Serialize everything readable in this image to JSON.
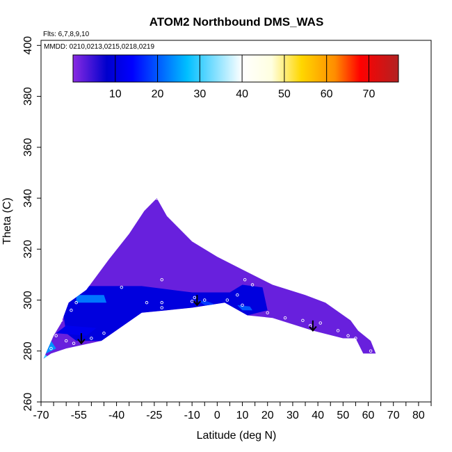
{
  "chart_data": {
    "type": "heatmap",
    "title": "ATOM2 Northbound DMS_WAS",
    "notes": {
      "flights": "Flts: 6,7,8,9,10",
      "dates": "MMDD: 0210,0213,0215,0218,0219"
    },
    "xlabel": "Latitude (deg N)",
    "ylabel": "Theta (C)",
    "xlim": [
      -70,
      85
    ],
    "ylim": [
      260,
      402
    ],
    "x_tick_labels": [
      "-70",
      "-55",
      "-40",
      "-25",
      "-10",
      "0",
      "10",
      "20",
      "30",
      "40",
      "50",
      "60",
      "70",
      "80"
    ],
    "x_tick_values": [
      -70,
      -55,
      -40,
      -25,
      -10,
      0,
      10,
      20,
      30,
      40,
      50,
      60,
      70,
      80
    ],
    "x_minor_ticks": [
      -65,
      -60,
      -50,
      -45,
      -35,
      -30,
      -20,
      -15,
      -5,
      5,
      15,
      25,
      35,
      45,
      55,
      65,
      75,
      85
    ],
    "y_tick_labels": [
      "260",
      "280",
      "300",
      "320",
      "340",
      "360",
      "380",
      "400"
    ],
    "y_tick_values": [
      260,
      280,
      300,
      320,
      340,
      360,
      380,
      400
    ],
    "colorbar": {
      "vmin": 0,
      "vmax": 77,
      "tick_labels": [
        "10",
        "20",
        "30",
        "40",
        "50",
        "60",
        "70"
      ],
      "tick_values": [
        10,
        20,
        30,
        40,
        50,
        60,
        70
      ],
      "stops": [
        {
          "v": 0,
          "color": "#8a2be2"
        },
        {
          "v": 8,
          "color": "#0000cd"
        },
        {
          "v": 14,
          "color": "#0000ff"
        },
        {
          "v": 27,
          "color": "#00bfff"
        },
        {
          "v": 40,
          "color": "#ffffff"
        },
        {
          "v": 47,
          "color": "#ffffe0"
        },
        {
          "v": 54,
          "color": "#ffd700"
        },
        {
          "v": 62,
          "color": "#ff8c00"
        },
        {
          "v": 68,
          "color": "#ff0000"
        },
        {
          "v": 77,
          "color": "#b22222"
        }
      ]
    },
    "field": {
      "envelope": [
        [
          -69,
          277
        ],
        [
          -65,
          286
        ],
        [
          -62,
          291
        ],
        [
          -59,
          299
        ],
        [
          -52,
          304
        ],
        [
          -43,
          316
        ],
        [
          -35,
          326
        ],
        [
          -29,
          335
        ],
        [
          -24,
          340
        ],
        [
          -20,
          333
        ],
        [
          -10,
          323
        ],
        [
          0,
          317
        ],
        [
          10,
          312
        ],
        [
          22,
          306
        ],
        [
          35,
          302
        ],
        [
          43,
          299
        ],
        [
          53,
          292
        ],
        [
          56,
          288
        ],
        [
          61,
          284
        ],
        [
          63,
          279
        ],
        [
          58,
          279
        ],
        [
          55,
          285
        ],
        [
          50,
          285
        ],
        [
          38,
          288
        ],
        [
          22,
          293
        ],
        [
          12,
          294
        ],
        [
          3,
          299
        ],
        [
          -10,
          297
        ],
        [
          -20,
          296
        ],
        [
          -30,
          295
        ],
        [
          -46,
          284
        ],
        [
          -60,
          281
        ],
        [
          -66,
          279
        ],
        [
          -69,
          277
        ]
      ],
      "background_value": 2,
      "patches": [
        {
          "points": [
            [
              -62,
              300
            ],
            [
              -55,
              305.5
            ],
            [
              -30,
              305.5
            ],
            [
              -10,
              303
            ],
            [
              5,
              303
            ],
            [
              10,
              306
            ],
            [
              18,
              305
            ],
            [
              20,
              296
            ],
            [
              12,
              294
            ],
            [
              3,
              299
            ],
            [
              -10,
              297
            ],
            [
              -20,
              296
            ],
            [
              -30,
              295
            ],
            [
              -46,
              284
            ],
            [
              -56,
              284
            ],
            [
              -60,
              287
            ]
          ],
          "value": 10
        },
        {
          "points": [
            [
              -56,
              302
            ],
            [
              -45,
              302
            ],
            [
              -44,
              299
            ],
            [
              -56,
              299
            ]
          ],
          "value": 22
        },
        {
          "points": [
            [
              -64,
              287
            ],
            [
              -52,
              286
            ],
            [
              -48,
              289
            ],
            [
              -60,
              290
            ]
          ],
          "value": 12
        },
        {
          "points": [
            [
              -68,
              279
            ],
            [
              -64,
              281
            ],
            [
              -66,
              284
            ],
            [
              -69,
              281
            ]
          ],
          "value": 24
        },
        {
          "points": [
            [
              -69,
              276.5
            ],
            [
              -67.5,
              278
            ],
            [
              -69,
              279
            ]
          ],
          "value": 30
        },
        {
          "points": [
            [
              -8,
              300
            ],
            [
              -4,
              299.5
            ],
            [
              0,
              298
            ],
            [
              -5,
              298
            ]
          ],
          "value": 18
        },
        {
          "points": [
            [
              8,
              298
            ],
            [
              13,
              297.5
            ],
            [
              14,
              296
            ],
            [
              10,
              296
            ]
          ],
          "value": 20
        }
      ],
      "samples": [
        [
          -24,
          340
        ],
        [
          -38,
          305
        ],
        [
          -22,
          308
        ],
        [
          -28,
          299
        ],
        [
          -22,
          297
        ],
        [
          -9,
          301
        ],
        [
          -5,
          300
        ],
        [
          4,
          300
        ],
        [
          8,
          302
        ],
        [
          11,
          308
        ],
        [
          14,
          306
        ],
        [
          20,
          295
        ],
        [
          27,
          293
        ],
        [
          34,
          292
        ],
        [
          41,
          291
        ],
        [
          37,
          290
        ],
        [
          48,
          288
        ],
        [
          52,
          286
        ],
        [
          55,
          285
        ],
        [
          61,
          280
        ],
        [
          -64,
          286
        ],
        [
          -60,
          284
        ],
        [
          -57,
          283
        ],
        [
          -50,
          285
        ],
        [
          -45,
          287
        ],
        [
          -58,
          296
        ],
        [
          -62,
          292
        ],
        [
          -56,
          299
        ],
        [
          -66,
          281
        ],
        [
          -10,
          299.5
        ],
        [
          10,
          298
        ],
        [
          -22,
          299
        ]
      ],
      "arrows": [
        {
          "lat": -54,
          "from": 287,
          "to": 283
        },
        {
          "lat": -8,
          "from": 302,
          "to": 298
        },
        {
          "lat": 38,
          "from": 292,
          "to": 288
        }
      ]
    }
  }
}
